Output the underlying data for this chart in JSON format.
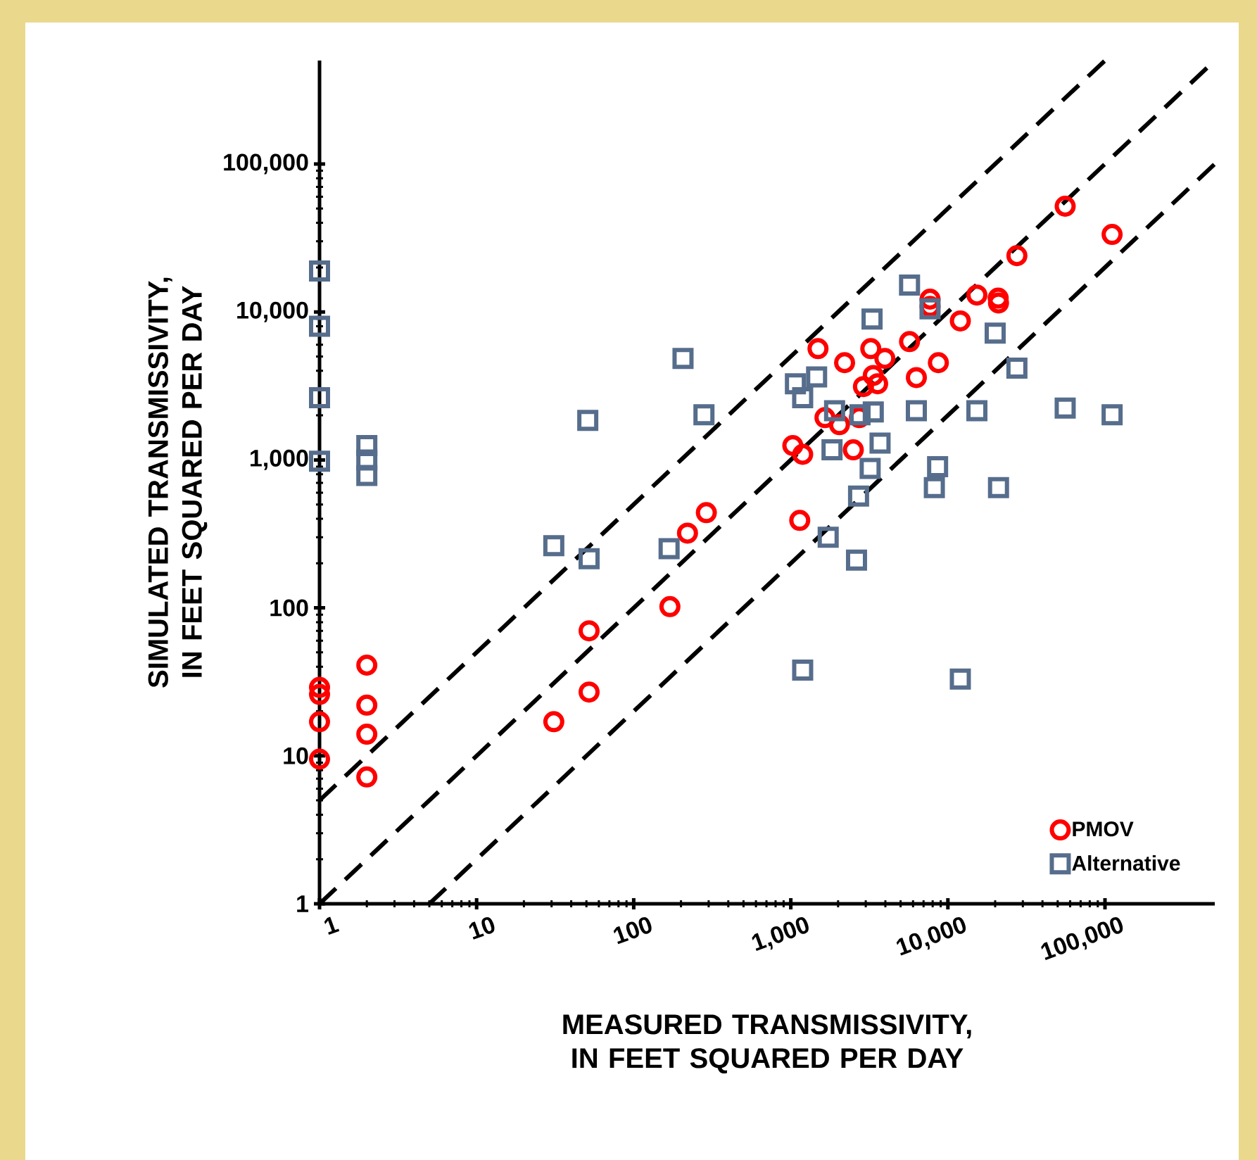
{
  "chart_data": {
    "type": "scatter",
    "xlabel": "MEASURED TRANSMISSIVITY,  IN FEET SQUARED PER DAY",
    "ylabel": "SIMULATED TRANSMISSIVITY,  IN FEET SQUARED PER DAY",
    "log": "xy",
    "xlim": [
      1,
      500000
    ],
    "ylim": [
      1,
      500000
    ],
    "xticks": [
      1,
      10,
      100,
      {
        "value": 1000,
        "label": "1,000"
      },
      {
        "value": 10000,
        "label": "10,000"
      },
      {
        "value": 100000,
        "label": "100,000"
      }
    ],
    "yticks": [
      1,
      10,
      100,
      {
        "value": 1000,
        "label": "1,000"
      },
      {
        "value": 10000,
        "label": "10,000"
      },
      {
        "value": 100000,
        "label": "100,000"
      }
    ],
    "legend": "bottom right",
    "series": [
      {
        "type": "line",
        "color": "#000000",
        "line_style": "dashed",
        "x": [
          1,
          100000
        ],
        "values": [
          5,
          500000
        ]
      },
      {
        "type": "line",
        "color": "#000000",
        "line_style": "dashed",
        "x": [
          1,
          500000
        ],
        "values": [
          1,
          500000
        ]
      },
      {
        "type": "line",
        "color": "#000000",
        "line_style": "dashed",
        "x": [
          5,
          500000
        ],
        "values": [
          1,
          100000
        ]
      },
      {
        "name": "PMOV",
        "color": "#ff0000",
        "marker": "circle",
        "x": [
          1,
          1,
          1,
          1,
          2,
          2,
          2,
          2,
          31,
          52,
          52,
          170,
          220,
          290,
          1140,
          1030,
          1190,
          2500,
          1650,
          2040,
          2730,
          2900,
          3570,
          3350,
          1490,
          2200,
          3230,
          3970,
          5700,
          6300,
          8700,
          7700,
          7700,
          12000,
          15300,
          20900,
          21000,
          27500,
          55800,
          111000
        ],
        "values": [
          29,
          26,
          17,
          9.5,
          41,
          22,
          14,
          7.2,
          17,
          27,
          70,
          102,
          320,
          440,
          390,
          1250,
          1090,
          1170,
          1930,
          1730,
          1930,
          3130,
          3270,
          3720,
          5650,
          4540,
          5650,
          4850,
          6300,
          3600,
          4540,
          12200,
          10900,
          8700,
          13000,
          12400,
          11500,
          24000,
          51800,
          33400
        ]
      },
      {
        "name": "Alternative",
        "color": "#566d8c",
        "marker": "square",
        "x": [
          1,
          1,
          1,
          1,
          2,
          2,
          2,
          206,
          280,
          51,
          31,
          52,
          168,
          1190,
          12000,
          5700,
          3290,
          7700,
          20000,
          27500,
          1070,
          1190,
          1460,
          6300,
          15300,
          55800,
          111000,
          3350,
          1900,
          2760,
          3700,
          1830,
          8600,
          8200,
          21000,
          3200,
          2700,
          1730,
          2620
        ],
        "values": [
          18900,
          8000,
          2630,
          980,
          1250,
          1000,
          785,
          4850,
          2020,
          1850,
          263,
          215,
          251,
          38,
          33,
          15200,
          8950,
          10500,
          7200,
          4170,
          3270,
          2630,
          3640,
          2150,
          2150,
          2240,
          2020,
          2110,
          2150,
          2020,
          1300,
          1170,
          900,
          650,
          650,
          875,
          570,
          300,
          210
        ]
      }
    ]
  }
}
